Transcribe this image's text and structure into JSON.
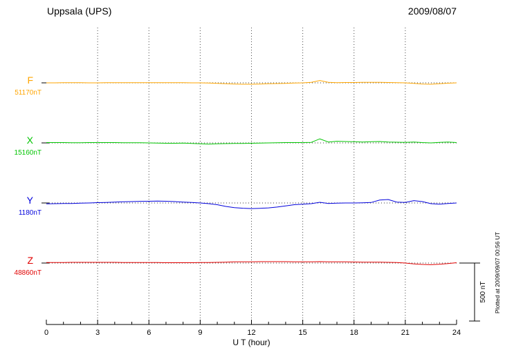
{
  "header": {
    "station": "Uppsala (UPS)",
    "date": "2009/08/07"
  },
  "axis": {
    "xlabel": "U T (hour)"
  },
  "scale_bar": {
    "label": "500 nT",
    "value_nT": 500
  },
  "side_note": "Plotted at 2009/09/07 00:56 UT",
  "chart_data": {
    "type": "line",
    "title": "Uppsala (UPS) magnetogram 2009/08/07",
    "xlabel": "U T (hour)",
    "x_range": [
      0,
      24
    ],
    "x_ticks": [
      0,
      3,
      6,
      9,
      12,
      15,
      18,
      21,
      24
    ],
    "x_step_hours": 0.5,
    "grid": "dotted vertical at every 3 h, dotted horizontal baseline per trace",
    "scale_nT_per_division": 500,
    "series": [
      {
        "name": "F",
        "base_value_label": "51170nT",
        "color": "#FFA500",
        "deviations_nT": [
          0,
          0,
          1,
          1,
          1,
          0,
          0,
          1,
          1,
          2,
          2,
          2,
          1,
          1,
          1,
          1,
          1,
          0,
          0,
          -2,
          -5,
          -8,
          -10,
          -12,
          -12,
          -10,
          -8,
          -6,
          -4,
          -2,
          0,
          5,
          20,
          5,
          2,
          3,
          3,
          4,
          4,
          4,
          3,
          2,
          0,
          -5,
          -10,
          -12,
          -8,
          -3,
          0
        ]
      },
      {
        "name": "X",
        "base_value_label": "15160nT",
        "color": "#00C400",
        "deviations_nT": [
          3,
          3,
          3,
          2,
          2,
          3,
          3,
          3,
          3,
          2,
          2,
          1,
          0,
          -2,
          -3,
          -3,
          -2,
          -5,
          -8,
          -10,
          -8,
          -6,
          -5,
          -4,
          -3,
          -2,
          0,
          2,
          3,
          3,
          3,
          5,
          35,
          8,
          14,
          12,
          10,
          8,
          10,
          12,
          8,
          6,
          5,
          8,
          3,
          0,
          5,
          8,
          3
        ]
      },
      {
        "name": "Y",
        "base_value_label": "1180nT",
        "color": "#0000DC",
        "deviations_nT": [
          -8,
          -6,
          -5,
          -4,
          -2,
          0,
          3,
          5,
          8,
          10,
          12,
          14,
          15,
          16,
          15,
          12,
          8,
          4,
          0,
          -6,
          -15,
          -30,
          -40,
          -45,
          -48,
          -46,
          -42,
          -35,
          -25,
          -15,
          -10,
          -6,
          6,
          -4,
          -2,
          0,
          0,
          2,
          4,
          25,
          30,
          8,
          5,
          20,
          12,
          -6,
          -10,
          -4,
          0
        ]
      },
      {
        "name": "Z",
        "base_value_label": "48860nT",
        "color": "#E00000",
        "deviations_nT": [
          5,
          5,
          5,
          6,
          6,
          6,
          6,
          6,
          6,
          5,
          5,
          5,
          4,
          4,
          3,
          3,
          3,
          3,
          4,
          5,
          6,
          8,
          10,
          10,
          11,
          12,
          12,
          12,
          12,
          11,
          10,
          10,
          12,
          11,
          10,
          10,
          9,
          8,
          8,
          7,
          6,
          4,
          0,
          -8,
          -12,
          -14,
          -10,
          -5,
          3
        ]
      }
    ]
  }
}
